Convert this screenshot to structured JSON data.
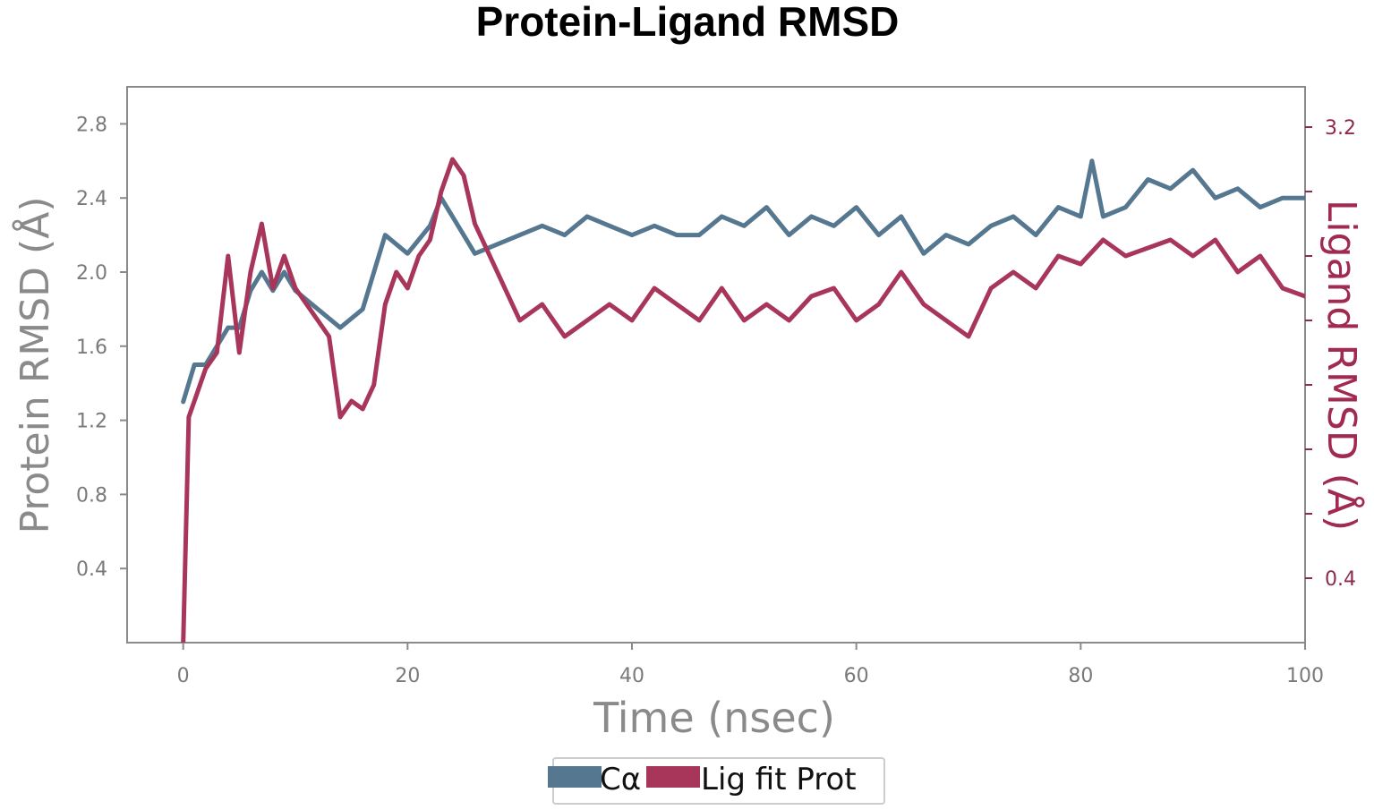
{
  "chart_data": {
    "type": "line",
    "title": "Protein-Ligand RMSD",
    "xlabel": "Time (nsec)",
    "ylabel": "Protein RMSD (Å)",
    "y2label": "Ligand RMSD (Å)",
    "xlim": [
      -5,
      100
    ],
    "ylim": [
      0.0,
      3.0
    ],
    "y2lim": [
      0.0,
      3.45
    ],
    "x_ticks": [
      "0",
      "20",
      "40",
      "60",
      "80",
      "100"
    ],
    "y_ticks": [
      "0.4",
      "0.8",
      "1.2",
      "1.6",
      "2.0",
      "2.4",
      "2.8"
    ],
    "y2_ticks_visible": [
      "0.4",
      "3.2"
    ],
    "grid": false,
    "legend_position": "bottom-center",
    "series": [
      {
        "name": "Cα",
        "axis": "left",
        "color": "#55778f",
        "x": [
          0,
          1,
          2,
          3,
          4,
          5,
          6,
          7,
          8,
          9,
          10,
          12,
          14,
          16,
          18,
          20,
          22,
          23,
          24,
          26,
          28,
          30,
          32,
          34,
          36,
          38,
          40,
          42,
          44,
          46,
          48,
          50,
          52,
          54,
          56,
          58,
          60,
          62,
          64,
          66,
          68,
          70,
          72,
          74,
          76,
          78,
          80,
          81,
          82,
          84,
          86,
          88,
          90,
          92,
          94,
          96,
          98,
          100
        ],
        "values": [
          1.3,
          1.5,
          1.5,
          1.6,
          1.7,
          1.7,
          1.9,
          2.0,
          1.9,
          2.0,
          1.9,
          1.8,
          1.7,
          1.8,
          2.2,
          2.1,
          2.25,
          2.4,
          2.3,
          2.1,
          2.15,
          2.2,
          2.25,
          2.2,
          2.3,
          2.25,
          2.2,
          2.25,
          2.2,
          2.2,
          2.3,
          2.25,
          2.35,
          2.2,
          2.3,
          2.25,
          2.35,
          2.2,
          2.3,
          2.1,
          2.2,
          2.15,
          2.25,
          2.3,
          2.2,
          2.35,
          2.3,
          2.6,
          2.3,
          2.35,
          2.5,
          2.45,
          2.55,
          2.4,
          2.45,
          2.35,
          2.4,
          2.4
        ]
      },
      {
        "name": "Lig fit Prot",
        "axis": "right",
        "color": "#a8365a",
        "x": [
          0,
          0.5,
          1,
          2,
          3,
          4,
          5,
          6,
          7,
          8,
          9,
          10,
          11,
          12,
          13,
          14,
          15,
          16,
          17,
          18,
          19,
          20,
          21,
          22,
          23,
          24,
          25,
          26,
          28,
          30,
          32,
          34,
          36,
          38,
          40,
          42,
          44,
          46,
          48,
          50,
          52,
          54,
          56,
          58,
          60,
          62,
          64,
          66,
          68,
          70,
          72,
          74,
          76,
          78,
          80,
          82,
          84,
          86,
          88,
          90,
          92,
          94,
          96,
          98,
          100
        ],
        "values": [
          0.0,
          1.4,
          1.5,
          1.7,
          1.8,
          2.4,
          1.8,
          2.3,
          2.6,
          2.2,
          2.4,
          2.2,
          2.1,
          2.0,
          1.9,
          1.4,
          1.5,
          1.45,
          1.6,
          2.1,
          2.3,
          2.2,
          2.4,
          2.5,
          2.8,
          3.0,
          2.9,
          2.6,
          2.3,
          2.0,
          2.1,
          1.9,
          2.0,
          2.1,
          2.0,
          2.2,
          2.1,
          2.0,
          2.2,
          2.0,
          2.1,
          2.0,
          2.15,
          2.2,
          2.0,
          2.1,
          2.3,
          2.1,
          2.0,
          1.9,
          2.2,
          2.3,
          2.2,
          2.4,
          2.35,
          2.5,
          2.4,
          2.45,
          2.5,
          2.4,
          2.5,
          2.3,
          2.4,
          2.2,
          2.15
        ]
      }
    ]
  }
}
